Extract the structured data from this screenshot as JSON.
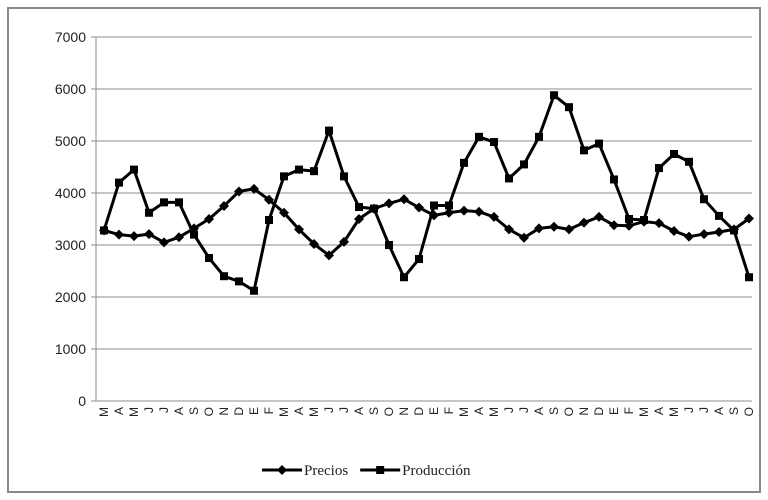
{
  "chart_data": {
    "type": "line",
    "categories": [
      "M",
      "A",
      "M",
      "J",
      "J",
      "A",
      "S",
      "O",
      "N",
      "D",
      "E",
      "F",
      "M",
      "A",
      "M",
      "J",
      "J",
      "A",
      "S",
      "O",
      "N",
      "D",
      "E",
      "F",
      "M",
      "A",
      "M",
      "J",
      "J",
      "A",
      "S",
      "O",
      "N",
      "D",
      "E",
      "F",
      "M",
      "A",
      "M",
      "J",
      "J",
      "A",
      "S",
      "O"
    ],
    "series": [
      {
        "name": "Precios",
        "color": "#000000",
        "marker": "diamond",
        "values": [
          3280,
          3200,
          3170,
          3210,
          3050,
          3150,
          3320,
          3500,
          3750,
          4030,
          4080,
          3870,
          3620,
          3300,
          3020,
          2800,
          3060,
          3500,
          3700,
          3800,
          3880,
          3720,
          3570,
          3620,
          3660,
          3640,
          3540,
          3300,
          3140,
          3320,
          3350,
          3300,
          3430,
          3540,
          3380,
          3370,
          3450,
          3420,
          3270,
          3160,
          3210,
          3250,
          3300,
          3510
        ]
      },
      {
        "name": "Producción",
        "color": "#000000",
        "marker": "square",
        "values": [
          3280,
          4200,
          4450,
          3620,
          3820,
          3820,
          3200,
          2750,
          2400,
          2300,
          2120,
          3480,
          4320,
          4450,
          4420,
          5200,
          4320,
          3730,
          3700,
          3000,
          2380,
          2730,
          3760,
          3760,
          4580,
          5080,
          4980,
          4280,
          4550,
          5080,
          5880,
          5650,
          4820,
          4950,
          4260,
          3500,
          3480,
          4480,
          4750,
          4600,
          3880,
          3560,
          3280,
          2380
        ]
      }
    ],
    "ylim": [
      0,
      7000
    ],
    "yticks": [
      0,
      1000,
      2000,
      3000,
      4000,
      5000,
      6000,
      7000
    ],
    "grid": true,
    "legend": "bottom"
  }
}
